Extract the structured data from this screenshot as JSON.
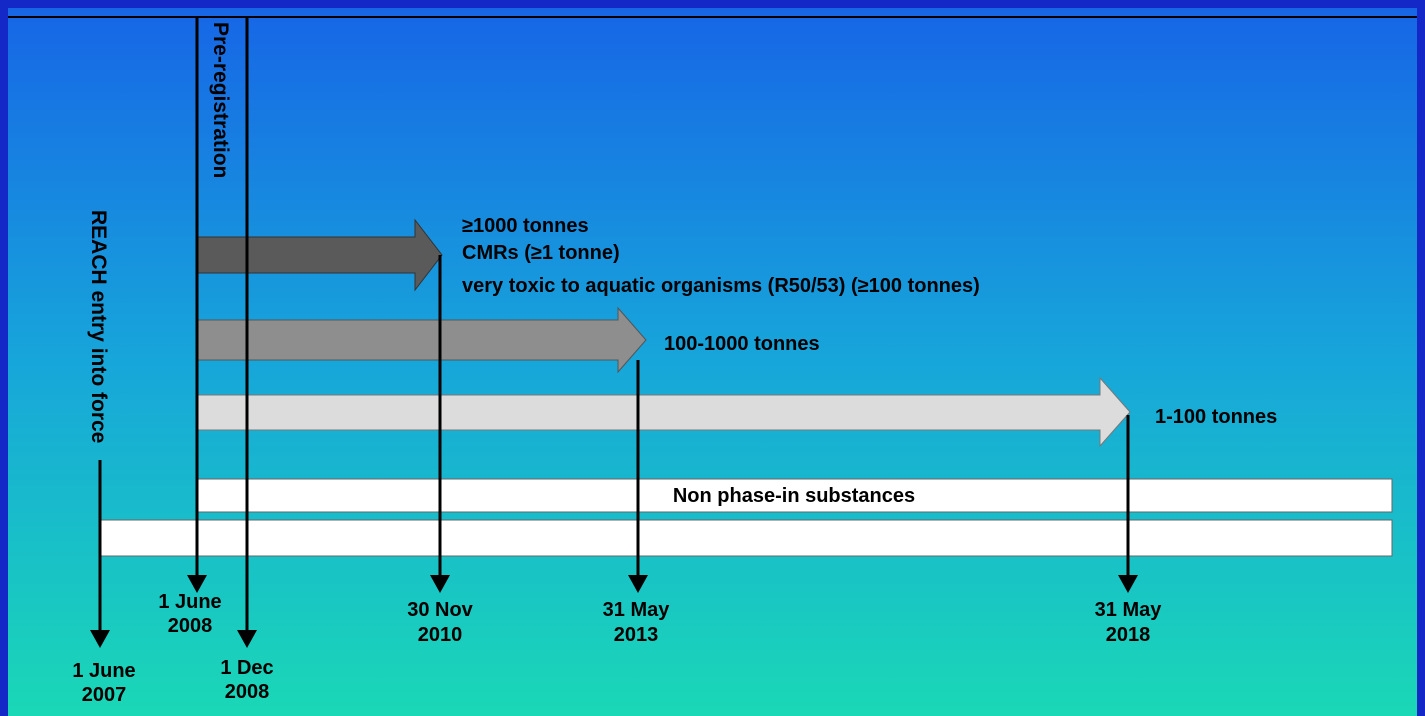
{
  "timeline": {
    "vertical_labels": [
      "REACH entry into force",
      "Pre-registration"
    ],
    "phases": [
      {
        "lines": [
          "≥1000 tonnes",
          "CMRs (≥1 tonne)",
          "very toxic to aquatic organisms (R50/53)  (≥100 tonnes)"
        ]
      },
      {
        "lines": [
          "100-1000 tonnes"
        ]
      },
      {
        "lines": [
          "1-100 tonnes"
        ]
      }
    ],
    "bar_label": "Non phase-in substances",
    "dates": [
      [
        "1 June",
        "2007"
      ],
      [
        "1 June",
        "2008"
      ],
      [
        "1 Dec",
        "2008"
      ],
      [
        "30 Nov",
        "2010"
      ],
      [
        "31 May",
        "2013"
      ],
      [
        "31 May",
        "2018"
      ]
    ]
  }
}
